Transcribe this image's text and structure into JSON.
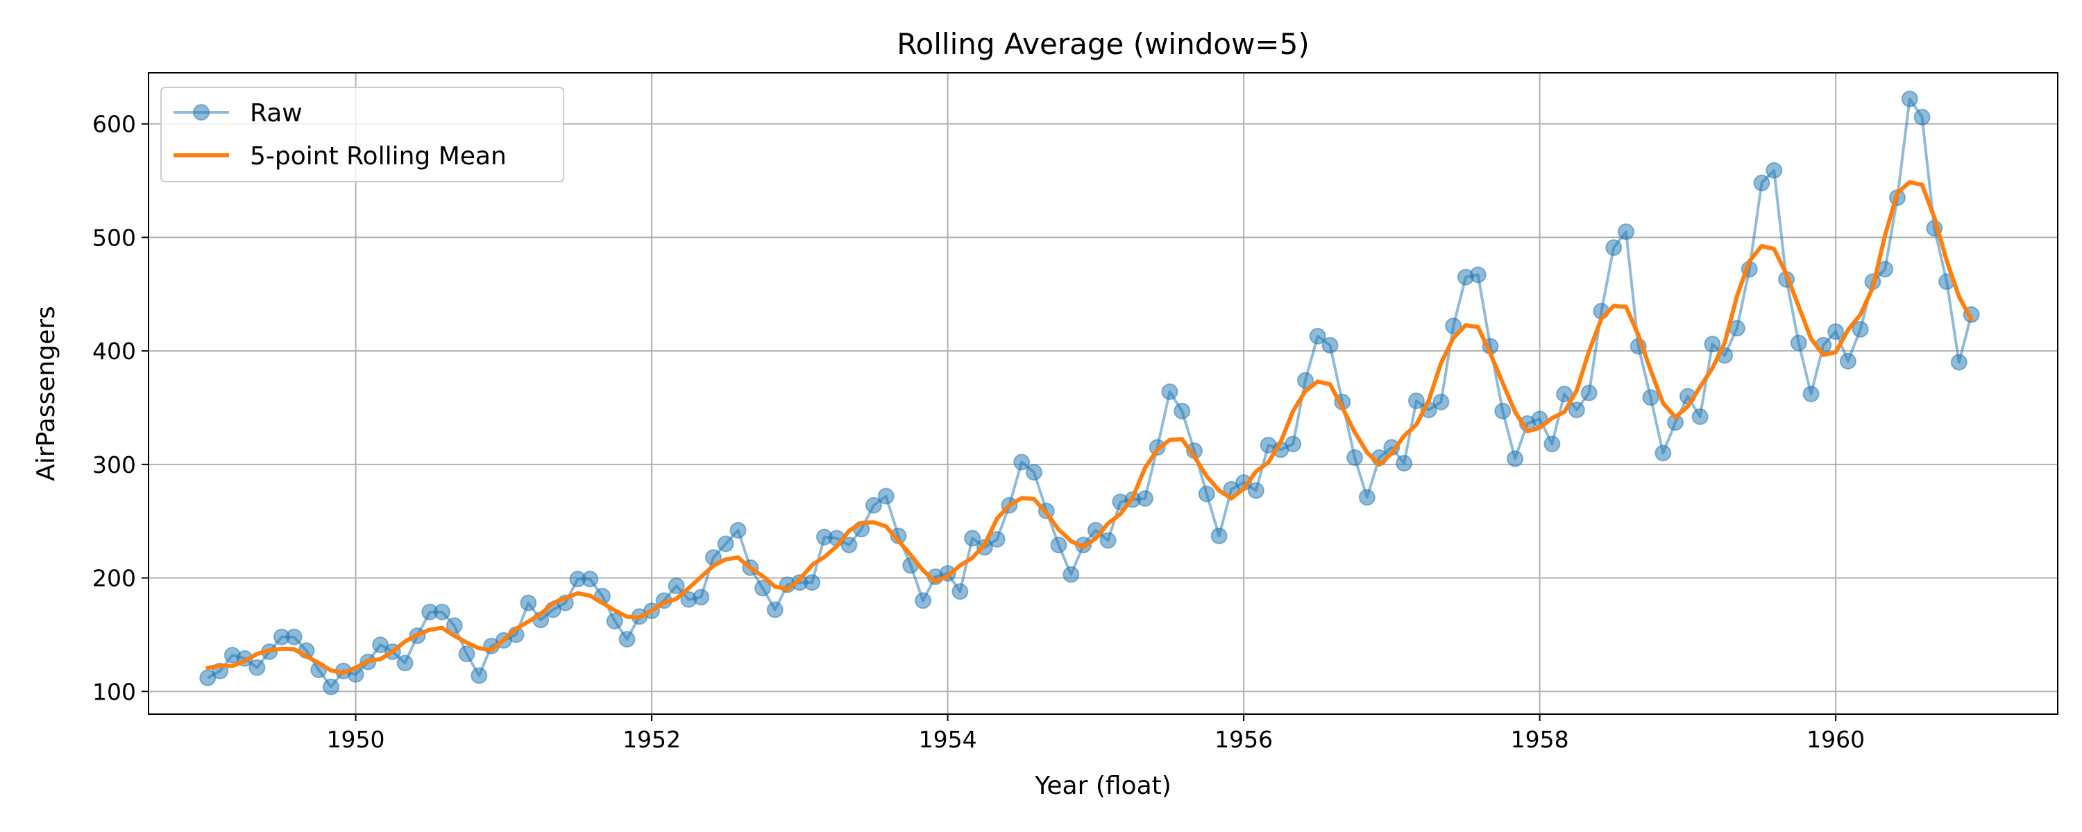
{
  "chart_data": {
    "type": "line",
    "title": "Rolling Average (window=5)",
    "xlabel": "Year (float)",
    "ylabel": "AirPassengers",
    "xlim": [
      1948.6,
      1961.5
    ],
    "ylim": [
      80,
      645
    ],
    "xticks": [
      1950,
      1952,
      1954,
      1956,
      1958,
      1960
    ],
    "yticks": [
      100,
      200,
      300,
      400,
      500,
      600
    ],
    "grid": true,
    "legend_position": "top-left",
    "x_start": 1949.0,
    "x_step_months": 1,
    "series": [
      {
        "name": "Raw",
        "color": "#1f77b4",
        "marker": "circle",
        "values": [
          112,
          118,
          132,
          129,
          121,
          135,
          148,
          148,
          136,
          119,
          104,
          118,
          115,
          126,
          141,
          135,
          125,
          149,
          170,
          170,
          158,
          133,
          114,
          140,
          145,
          150,
          178,
          163,
          172,
          178,
          199,
          199,
          184,
          162,
          146,
          166,
          171,
          180,
          193,
          181,
          183,
          218,
          230,
          242,
          209,
          191,
          172,
          194,
          196,
          196,
          236,
          235,
          229,
          243,
          264,
          272,
          237,
          211,
          180,
          201,
          204,
          188,
          235,
          227,
          234,
          264,
          302,
          293,
          259,
          229,
          203,
          229,
          242,
          233,
          267,
          269,
          270,
          315,
          364,
          347,
          312,
          274,
          237,
          278,
          284,
          277,
          317,
          313,
          318,
          374,
          413,
          405,
          355,
          306,
          271,
          306,
          315,
          301,
          356,
          348,
          355,
          422,
          465,
          467,
          404,
          347,
          305,
          336,
          340,
          318,
          362,
          348,
          363,
          435,
          491,
          505,
          404,
          359,
          310,
          337,
          360,
          342,
          406,
          396,
          420,
          472,
          548,
          559,
          463,
          407,
          362,
          405,
          417,
          391,
          419,
          461,
          472,
          535,
          622,
          606,
          508,
          461,
          390,
          432
        ]
      },
      {
        "name": "5-point Rolling Mean",
        "color": "#ff7f0e",
        "window": 5
      }
    ]
  }
}
